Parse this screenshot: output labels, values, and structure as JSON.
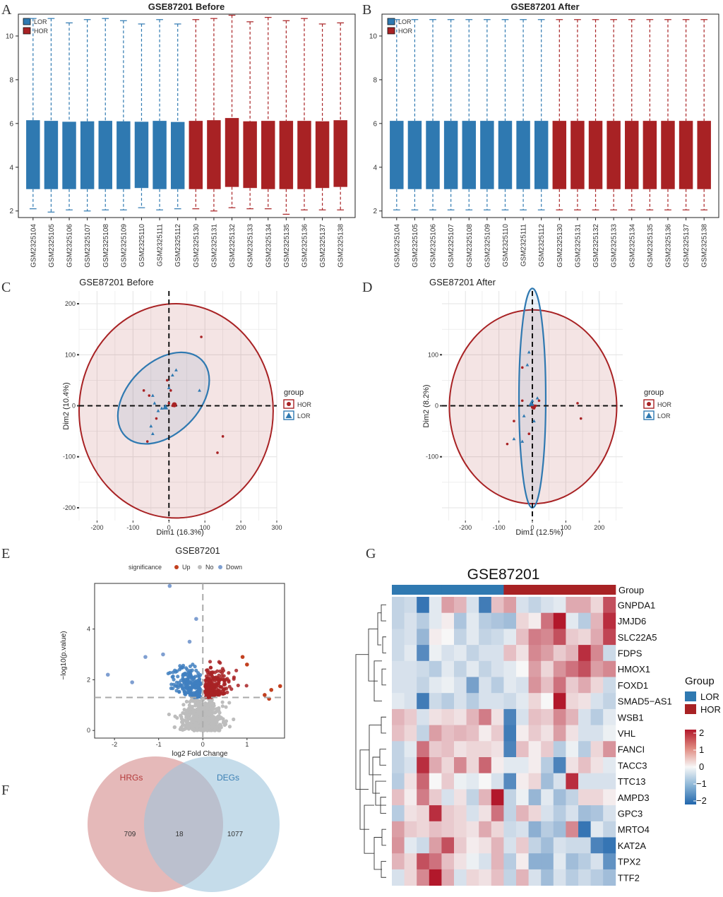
{
  "panel_labels": {
    "A": "A",
    "B": "B",
    "C": "C",
    "D": "D",
    "E": "E",
    "F": "F",
    "G": "G"
  },
  "colors": {
    "lor": "#2f79b1",
    "hor": "#a82224",
    "up": "#c2401f",
    "down": "#3f7fbf",
    "no": "#bdbdbd",
    "venn_left": "#cf7f7f",
    "venn_right": "#9fc4dc",
    "venn_left_text": "#b43a3a",
    "venn_right_text": "#3a7fb4"
  },
  "chart_data": [
    {
      "id": "A",
      "type": "box",
      "title": "GSE87201 Before",
      "legend": [
        "LOR",
        "HOR"
      ],
      "ylim": [
        1.7,
        11
      ],
      "yticks": [
        2,
        4,
        6,
        8,
        10
      ],
      "samples": [
        "GSM2325104",
        "GSM2325105",
        "GSM2325106",
        "GSM2325107",
        "GSM2325108",
        "GSM2325109",
        "GSM2325110",
        "GSM2325111",
        "GSM2325112",
        "GSM2325130",
        "GSM2325131",
        "GSM2325132",
        "GSM2325133",
        "GSM2325134",
        "GSM2325135",
        "GSM2325136",
        "GSM2325137",
        "GSM2325138"
      ],
      "groups": [
        "LOR",
        "LOR",
        "LOR",
        "LOR",
        "LOR",
        "LOR",
        "LOR",
        "LOR",
        "LOR",
        "HOR",
        "HOR",
        "HOR",
        "HOR",
        "HOR",
        "HOR",
        "HOR",
        "HOR",
        "HOR"
      ],
      "min": [
        2.1,
        1.95,
        2.05,
        2.0,
        2.05,
        2.05,
        2.15,
        2.05,
        2.1,
        2.1,
        2.0,
        2.15,
        2.1,
        2.1,
        1.85,
        2.05,
        2.05,
        2.05
      ],
      "q1": [
        3.0,
        3.0,
        3.0,
        3.0,
        3.0,
        3.0,
        3.05,
        3.0,
        3.0,
        3.0,
        3.0,
        3.1,
        3.05,
        3.0,
        3.0,
        3.0,
        3.05,
        3.1
      ],
      "q3": [
        6.15,
        6.12,
        6.08,
        6.1,
        6.12,
        6.1,
        6.08,
        6.12,
        6.07,
        6.12,
        6.15,
        6.25,
        6.1,
        6.12,
        6.12,
        6.12,
        6.1,
        6.15
      ],
      "max": [
        10.8,
        10.8,
        10.6,
        10.75,
        10.8,
        10.7,
        10.55,
        10.75,
        10.55,
        10.75,
        10.8,
        10.95,
        10.65,
        10.85,
        10.7,
        10.8,
        10.55,
        10.6
      ]
    },
    {
      "id": "B",
      "type": "box",
      "title": "GSE87201 After",
      "legend": [
        "LOR",
        "HOR"
      ],
      "ylim": [
        1.7,
        11
      ],
      "yticks": [
        2,
        4,
        6,
        8,
        10
      ],
      "samples": [
        "GSM2325104",
        "GSM2325105",
        "GSM2325106",
        "GSM2325107",
        "GSM2325108",
        "GSM2325109",
        "GSM2325110",
        "GSM2325111",
        "GSM2325112",
        "GSM2325130",
        "GSM2325131",
        "GSM2325132",
        "GSM2325133",
        "GSM2325134",
        "GSM2325135",
        "GSM2325136",
        "GSM2325137",
        "GSM2325138"
      ],
      "groups": [
        "LOR",
        "LOR",
        "LOR",
        "LOR",
        "LOR",
        "LOR",
        "LOR",
        "LOR",
        "LOR",
        "HOR",
        "HOR",
        "HOR",
        "HOR",
        "HOR",
        "HOR",
        "HOR",
        "HOR",
        "HOR"
      ],
      "min": [
        2.05,
        2.05,
        2.05,
        2.05,
        2.05,
        2.05,
        2.05,
        2.05,
        2.05,
        2.05,
        2.05,
        2.05,
        2.05,
        2.05,
        2.05,
        2.05,
        2.05,
        2.05
      ],
      "q1": [
        3.0,
        3.0,
        3.0,
        3.0,
        3.0,
        3.0,
        3.0,
        3.0,
        3.0,
        3.0,
        3.0,
        3.0,
        3.0,
        3.0,
        3.0,
        3.0,
        3.0,
        3.0
      ],
      "q3": [
        6.12,
        6.12,
        6.12,
        6.12,
        6.12,
        6.12,
        6.12,
        6.12,
        6.12,
        6.12,
        6.12,
        6.12,
        6.12,
        6.12,
        6.12,
        6.12,
        6.12,
        6.12
      ],
      "max": [
        10.75,
        10.75,
        10.75,
        10.75,
        10.75,
        10.75,
        10.75,
        10.75,
        10.75,
        10.75,
        10.75,
        10.75,
        10.75,
        10.75,
        10.75,
        10.75,
        10.75,
        10.75
      ]
    },
    {
      "id": "C",
      "type": "scatter",
      "title": "GSE87201 Before",
      "xlabel": "Dim1 (16.3%)",
      "ylabel": "Dim2 (10.4%)",
      "xlim": [
        -250,
        300
      ],
      "ylim": [
        -225,
        225
      ],
      "xticks": [
        -200,
        -100,
        0,
        100,
        200,
        300
      ],
      "yticks": [
        -200,
        -100,
        0,
        100,
        200
      ],
      "legend_title": "group",
      "legend": [
        "HOR",
        "LOR"
      ],
      "hor_points": [
        [
          -70,
          30
        ],
        [
          -5,
          50
        ],
        [
          5,
          30
        ],
        [
          90,
          135
        ],
        [
          -55,
          20
        ],
        [
          -35,
          -25
        ],
        [
          -60,
          -70
        ],
        [
          10,
          0
        ],
        [
          150,
          -60
        ],
        [
          135,
          -92
        ],
        [
          0,
          5
        ]
      ],
      "lor_points": [
        [
          -45,
          20
        ],
        [
          -40,
          5
        ],
        [
          -20,
          -5
        ],
        [
          -50,
          -40
        ],
        [
          -45,
          -55
        ],
        [
          0,
          35
        ],
        [
          10,
          60
        ],
        [
          85,
          30
        ],
        [
          -30,
          -10
        ],
        [
          20,
          70
        ]
      ],
      "hor_centroid": [
        15,
        2
      ],
      "lor_centroid": [
        -10,
        -3
      ],
      "hor_ellipse": {
        "cx": 20,
        "cy": -10,
        "rx": 270,
        "ry": 210
      },
      "lor_ellipse": {
        "cx": -15,
        "cy": 15,
        "rx": 150,
        "ry": 70,
        "angle_deg": 45
      }
    },
    {
      "id": "D",
      "type": "scatter",
      "title": "GSE87201 After",
      "xlabel": "Dim1 (12.5%)",
      "ylabel": "Dim2 (8.2%)",
      "xlim": [
        -270,
        270
      ],
      "ylim": [
        -225,
        225
      ],
      "xticks": [
        -200,
        -100,
        0,
        100,
        200
      ],
      "yticks": [
        -100,
        0,
        100
      ],
      "legend_title": "group",
      "legend": [
        "HOR",
        "LOR"
      ],
      "hor_points": [
        [
          -30,
          75
        ],
        [
          -30,
          10
        ],
        [
          -55,
          -30
        ],
        [
          -10,
          -55
        ],
        [
          -75,
          -75
        ],
        [
          5,
          -5
        ],
        [
          135,
          5
        ],
        [
          145,
          -25
        ],
        [
          20,
          10
        ],
        [
          10,
          0
        ]
      ],
      "lor_points": [
        [
          -10,
          105
        ],
        [
          -15,
          80
        ],
        [
          15,
          15
        ],
        [
          -25,
          -20
        ],
        [
          -30,
          -70
        ],
        [
          5,
          -30
        ],
        [
          -55,
          -65
        ],
        [
          0,
          10
        ]
      ],
      "hor_centroid": [
        3,
        -2
      ],
      "lor_centroid": [
        -3,
        4
      ],
      "hor_ellipse": {
        "cx": 2,
        "cy": -2,
        "rx": 250,
        "ry": 190
      },
      "lor_ellipse": {
        "cx": 0,
        "cy": 15,
        "rx": 40,
        "ry": 215
      }
    },
    {
      "id": "E",
      "type": "volcano",
      "title": "GSE87201",
      "xlabel": "log2 Fold Change",
      "ylabel": "−log10(p.value)",
      "legend_title": "significance",
      "legend": [
        "Up",
        "No",
        "Down"
      ],
      "xlim": [
        -2.45,
        1.85
      ],
      "ylim": [
        -0.3,
        5.8
      ],
      "xticks": [
        -2,
        -1,
        0,
        1
      ],
      "yticks": [
        0,
        2,
        4
      ],
      "threshold_y": 1.3
    },
    {
      "id": "F",
      "type": "venn",
      "labels": [
        "HRGs",
        "DEGs"
      ],
      "only_left": "709",
      "overlap": "18",
      "only_right": "1077"
    },
    {
      "id": "G",
      "type": "heatmap",
      "title": "GSE87201",
      "annotation_label": "Group",
      "column_groups": [
        "LOR",
        "LOR",
        "LOR",
        "LOR",
        "LOR",
        "LOR",
        "LOR",
        "LOR",
        "LOR",
        "HOR",
        "HOR",
        "HOR",
        "HOR",
        "HOR",
        "HOR",
        "HOR",
        "HOR",
        "HOR"
      ],
      "rows": [
        "GNPDA1",
        "JMJD6",
        "SLC22A5",
        "FDPS",
        "HMOX1",
        "FOXD1",
        "SMAD5−AS1",
        "WSB1",
        "VHL",
        "FANCI",
        "TACC3",
        "TTC13",
        "AMPD3",
        "GPC3",
        "MRTO4",
        "KAT2A",
        "TPX2",
        "TTF2"
      ],
      "legend_title": "Group",
      "legend": [
        "LOR",
        "HOR"
      ],
      "scale_ticks": [
        "2",
        "1",
        "0",
        "−1",
        "−2"
      ],
      "values": [
        [
          -0.5,
          -0.4,
          -1.8,
          -0.2,
          0.8,
          0.6,
          -0.3,
          -1.7,
          0.5,
          0.8,
          -0.3,
          -0.5,
          -0.3,
          -0.2,
          0.7,
          0.7,
          0.3,
          1.5
        ],
        [
          -0.5,
          -0.3,
          -0.6,
          -0.2,
          0.1,
          -0.7,
          -0.2,
          -0.6,
          -0.7,
          -0.8,
          0.3,
          0.1,
          1.2,
          2.0,
          -0.2,
          -0.6,
          0.6,
          1.8
        ],
        [
          -0.4,
          -0.3,
          -0.9,
          0.1,
          0.0,
          -0.5,
          -0.2,
          -0.5,
          -0.4,
          -0.2,
          0.5,
          1.1,
          1.0,
          1.5,
          0.4,
          0.3,
          0.7,
          1.6
        ],
        [
          -0.4,
          -0.2,
          -1.5,
          -0.1,
          -0.3,
          -0.2,
          -0.5,
          -0.3,
          -0.3,
          0.5,
          0.2,
          1.0,
          0.8,
          0.4,
          0.6,
          1.8,
          1.0,
          -0.4
        ],
        [
          -0.3,
          -0.3,
          -0.4,
          -0.6,
          -0.2,
          -0.5,
          -0.2,
          -0.5,
          -0.3,
          -0.2,
          0.0,
          0.8,
          0.3,
          0.9,
          1.2,
          1.5,
          0.8,
          1.0
        ],
        [
          -0.3,
          -0.3,
          -0.5,
          -0.2,
          -0.1,
          -0.3,
          -1.2,
          -0.3,
          -0.6,
          -0.2,
          -0.3,
          0.9,
          0.5,
          1.2,
          0.4,
          0.7,
          0.3,
          -0.4
        ],
        [
          -0.2,
          -0.3,
          -1.7,
          -0.4,
          -0.6,
          -0.3,
          -0.6,
          -0.3,
          -0.3,
          -0.4,
          -0.2,
          0.3,
          0.0,
          2.0,
          0.3,
          0.2,
          -0.3,
          -0.5
        ],
        [
          0.6,
          0.4,
          -0.3,
          0.2,
          0.3,
          0.2,
          0.6,
          1.1,
          0.2,
          -1.6,
          -0.3,
          0.5,
          0.4,
          1.0,
          0.6,
          -0.3,
          -0.6,
          -0.2
        ],
        [
          0.5,
          0.3,
          -0.5,
          0.8,
          0.5,
          0.6,
          0.5,
          0.1,
          0.4,
          -1.7,
          0.1,
          0.4,
          0.2,
          0.8,
          0.2,
          -0.3,
          -0.3,
          -0.1
        ],
        [
          -0.5,
          -0.2,
          1.2,
          0.4,
          0.5,
          0.2,
          0.3,
          0.3,
          0.2,
          -1.6,
          0.5,
          0.1,
          0.4,
          -0.6,
          -0.1,
          -0.6,
          0.3,
          0.9
        ],
        [
          -0.5,
          -0.3,
          1.8,
          0.7,
          0.3,
          1.0,
          0.3,
          1.3,
          0.1,
          -0.2,
          -0.2,
          0.1,
          -0.6,
          -1.6,
          0.2,
          0.5,
          0.2,
          -0.2
        ],
        [
          -0.6,
          0.2,
          1.3,
          0.0,
          0.4,
          -0.1,
          -0.2,
          0.0,
          -0.3,
          -1.5,
          0.1,
          0.3,
          -0.8,
          -0.3,
          1.8,
          -0.3,
          -0.3,
          -0.3
        ],
        [
          0.5,
          0.1,
          1.1,
          0.4,
          -0.3,
          0.2,
          -0.5,
          0.6,
          2.0,
          -0.5,
          -0.1,
          -0.9,
          -0.2,
          -0.8,
          -0.5,
          0.3,
          0.3,
          0.1
        ],
        [
          -0.6,
          0.2,
          0.3,
          1.8,
          0.4,
          0.3,
          -0.3,
          0.2,
          1.2,
          -0.5,
          0.6,
          0.3,
          -0.3,
          -0.6,
          -0.3,
          -0.8,
          -0.7,
          -0.3
        ],
        [
          0.8,
          0.4,
          0.3,
          0.5,
          0.4,
          0.3,
          0.2,
          0.7,
          0.3,
          -0.4,
          -0.3,
          -1.0,
          -0.6,
          -0.8,
          1.0,
          -1.8,
          -0.2,
          -0.5
        ],
        [
          0.9,
          -0.2,
          -0.4,
          0.8,
          1.5,
          0.4,
          0.1,
          0.2,
          0.6,
          -0.3,
          0.4,
          -0.5,
          -0.8,
          -0.3,
          -0.4,
          -0.4,
          -1.6,
          -1.8
        ],
        [
          0.6,
          0.3,
          1.5,
          1.2,
          0.5,
          0.2,
          -0.1,
          -0.3,
          0.6,
          -0.6,
          0.1,
          -1.0,
          -1.0,
          -0.2,
          -0.8,
          -0.6,
          -0.3,
          -1.4
        ],
        [
          -0.3,
          0.3,
          1.0,
          2.0,
          0.7,
          -0.3,
          0.3,
          0.2,
          0.5,
          -0.5,
          0.6,
          -0.3,
          -0.8,
          -0.3,
          -0.6,
          -0.4,
          -0.6,
          -0.8
        ]
      ]
    }
  ]
}
